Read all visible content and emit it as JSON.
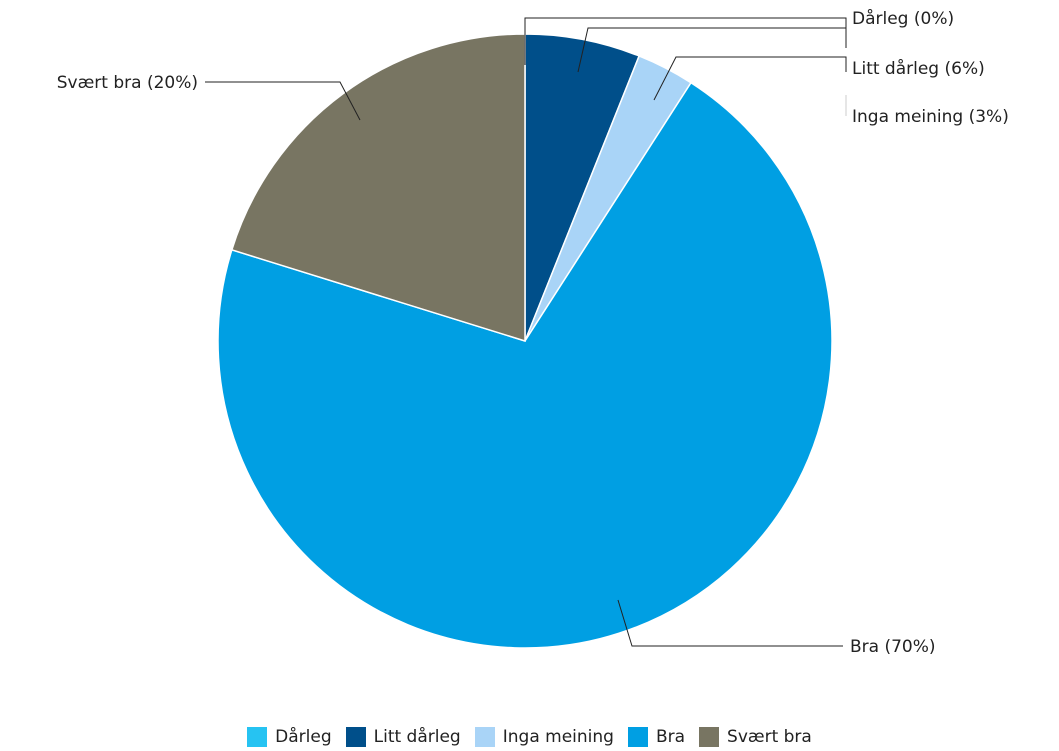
{
  "chart_data": {
    "type": "pie",
    "slices": [
      {
        "name": "Dårleg",
        "value": 0,
        "label": "Dårleg (0%)",
        "color": "#26C3F2"
      },
      {
        "name": "Litt dårleg",
        "value": 6,
        "label": "Litt dårleg (6%)",
        "color": "#004F8A"
      },
      {
        "name": "Inga meining",
        "value": 3,
        "label": "Inga meining (3%)",
        "color": "#A9D4F7"
      },
      {
        "name": "Bra",
        "value": 70,
        "label": "Bra (70%)",
        "color": "#009FE3"
      },
      {
        "name": "Svært bra",
        "value": 20,
        "label": "Svært bra (20%)",
        "color": "#787562"
      }
    ],
    "legend_position": "bottom"
  }
}
